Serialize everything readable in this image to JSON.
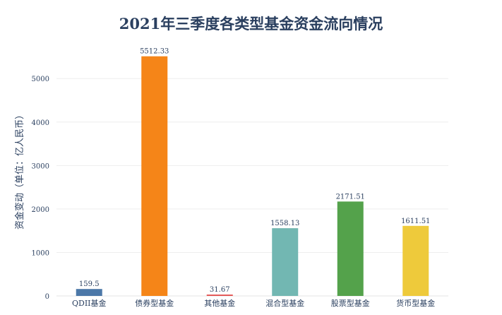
{
  "chart_data": {
    "type": "bar",
    "title": "2021年三季度各类型基金资金流向情况",
    "xlabel": "",
    "ylabel": "资金变动（单位：亿人民币）",
    "categories": [
      "QDII基金",
      "债券型基金",
      "其他基金",
      "混合型基金",
      "股票型基金",
      "货币型基金"
    ],
    "values": [
      159.5,
      5512.33,
      31.67,
      1558.13,
      2171.51,
      1611.51
    ],
    "value_labels": [
      "159.5",
      "5512.33",
      "31.67",
      "1558.13",
      "2171.51",
      "1611.51"
    ],
    "colors": [
      "#4c78a8",
      "#f58518",
      "#e45756",
      "#72b7b2",
      "#54a24b",
      "#eeca3b"
    ],
    "ylim": [
      0,
      5800
    ],
    "yticks": [
      0,
      1000,
      2000,
      3000,
      4000,
      5000
    ],
    "ytick_labels": [
      "0",
      "1000",
      "2000",
      "3000",
      "4000",
      "5000"
    ],
    "grid": true,
    "legend": "none"
  }
}
